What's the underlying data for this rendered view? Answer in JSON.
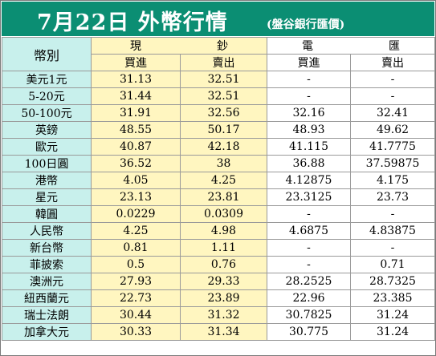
{
  "header": {
    "title": "7月22日 外幣行情",
    "bank": "(盤谷銀行匯價)"
  },
  "table": {
    "corner_label": "幣別",
    "groups": [
      "現　鈔",
      "電　匯"
    ],
    "columns": [
      "買進",
      "賣出",
      "買進",
      "賣出"
    ],
    "rows": [
      {
        "currency": "美元1元",
        "cash_buy": "31.13",
        "cash_sell": "32.51",
        "wire_buy": "-",
        "wire_sell": "-"
      },
      {
        "currency": "5-20元",
        "cash_buy": "31.44",
        "cash_sell": "32.51",
        "wire_buy": "-",
        "wire_sell": "-"
      },
      {
        "currency": "50-100元",
        "cash_buy": "31.91",
        "cash_sell": "32.56",
        "wire_buy": "32.16",
        "wire_sell": "32.41"
      },
      {
        "currency": "英鎊",
        "cash_buy": "48.55",
        "cash_sell": "50.17",
        "wire_buy": "48.93",
        "wire_sell": "49.62"
      },
      {
        "currency": "歐元",
        "cash_buy": "40.87",
        "cash_sell": "42.18",
        "wire_buy": "41.115",
        "wire_sell": "41.7775"
      },
      {
        "currency": "100日圓",
        "cash_buy": "36.52",
        "cash_sell": "38",
        "wire_buy": "36.88",
        "wire_sell": "37.59875"
      },
      {
        "currency": "港幣",
        "cash_buy": "4.05",
        "cash_sell": "4.25",
        "wire_buy": "4.12875",
        "wire_sell": "4.175"
      },
      {
        "currency": "星元",
        "cash_buy": "23.13",
        "cash_sell": "23.81",
        "wire_buy": "23.3125",
        "wire_sell": "23.73"
      },
      {
        "currency": "韓圓",
        "cash_buy": "0.0229",
        "cash_sell": "0.0309",
        "wire_buy": "-",
        "wire_sell": "-"
      },
      {
        "currency": "人民幣",
        "cash_buy": "4.25",
        "cash_sell": "4.98",
        "wire_buy": "4.6875",
        "wire_sell": "4.83875"
      },
      {
        "currency": "新台幣",
        "cash_buy": "0.81",
        "cash_sell": "1.11",
        "wire_buy": "-",
        "wire_sell": "-"
      },
      {
        "currency": "菲披索",
        "cash_buy": "0.5",
        "cash_sell": "0.76",
        "wire_buy": "-",
        "wire_sell": "0.71"
      },
      {
        "currency": "澳洲元",
        "cash_buy": "27.93",
        "cash_sell": "29.33",
        "wire_buy": "28.2525",
        "wire_sell": "28.7325"
      },
      {
        "currency": "紐西蘭元",
        "cash_buy": "22.73",
        "cash_sell": "23.89",
        "wire_buy": "22.96",
        "wire_sell": "23.385"
      },
      {
        "currency": "瑞士法朗",
        "cash_buy": "30.44",
        "cash_sell": "31.32",
        "wire_buy": "30.7825",
        "wire_sell": "31.24"
      },
      {
        "currency": "加拿大元",
        "cash_buy": "30.33",
        "cash_sell": "31.34",
        "wire_buy": "30.775",
        "wire_sell": "31.24"
      }
    ]
  },
  "colors": {
    "title_bg": "#0b8e73",
    "currency_bg": "#c8f0ec",
    "cash_bg": "#fff6c0",
    "wire_bg": "#ffffff"
  }
}
